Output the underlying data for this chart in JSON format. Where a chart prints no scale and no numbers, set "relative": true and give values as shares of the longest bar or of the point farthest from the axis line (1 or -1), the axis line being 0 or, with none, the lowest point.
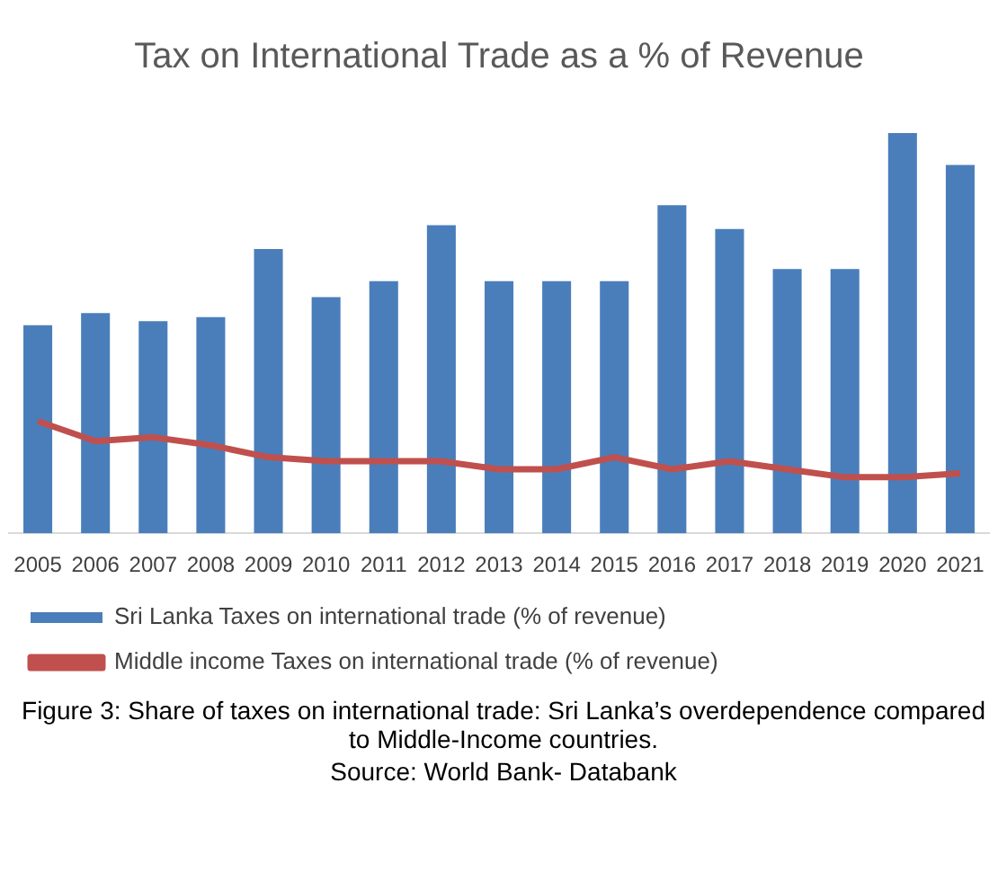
{
  "chart_data": {
    "type": "bar",
    "title": "Tax on International Trade as a % of Revenue",
    "relative": true,
    "legend": "bottom",
    "categories": [
      "2005",
      "2006",
      "2007",
      "2008",
      "2009",
      "2010",
      "2011",
      "2012",
      "2013",
      "2014",
      "2015",
      "2016",
      "2017",
      "2018",
      "2019",
      "2020",
      "2021"
    ],
    "series": [
      {
        "name": "Sri Lanka Taxes on international trade (% of revenue)",
        "color": "#4a7ebb",
        "values": [
          0.52,
          0.55,
          0.53,
          0.54,
          0.71,
          0.59,
          0.63,
          0.77,
          0.63,
          0.63,
          0.63,
          0.82,
          0.76,
          0.66,
          0.66,
          1,
          0.92
        ]
      },
      {
        "name": "Middle income Taxes on international trade (% of revenue)",
        "type": "line",
        "color": "#c0504d",
        "values": [
          0.28,
          0.23,
          0.24,
          0.22,
          0.19,
          0.18,
          0.18,
          0.18,
          0.16,
          0.16,
          0.19,
          0.16,
          0.18,
          0.16,
          0.14,
          0.14,
          0.15
        ]
      }
    ],
    "annotations": [
      "Figure 3: Share of taxes on international trade: Sri Lanka’s overdependence compared to Middle-Income countries.",
      "Source: World Bank- Databank"
    ]
  }
}
